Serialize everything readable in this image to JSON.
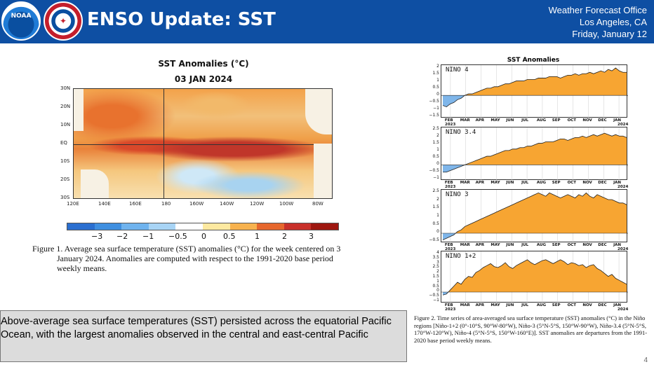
{
  "header": {
    "noaa_logo_text": "NOAA",
    "nws_logo_text": "NATIONAL WEATHER SERVICE",
    "title": "ENSO Update: SST",
    "office": "Weather Forecast Office",
    "location": "Los Angeles, CA",
    "date": "Friday, January 12"
  },
  "map": {
    "title": "SST Anomalies (°C)",
    "date": "03 JAN 2024",
    "lat_labels": [
      "30N",
      "20N",
      "10N",
      "EQ",
      "10S",
      "20S",
      "30S"
    ],
    "lon_labels": [
      "120E",
      "140E",
      "160E",
      "180",
      "160W",
      "140W",
      "120W",
      "100W",
      "80W"
    ],
    "colorbar_labels": [
      "−3",
      "−2",
      "−1",
      "−0.5",
      "0",
      "0.5",
      "1",
      "2",
      "3"
    ],
    "colorbar_colors": [
      "#2b6fd0",
      "#3f8fe0",
      "#6fb3ee",
      "#a8d4f5",
      "#ffffff",
      "#fde9a0",
      "#f7b24e",
      "#e6672d",
      "#c8302a",
      "#9e1710"
    ],
    "caption_line1": "Figure 1. Average sea surface temperature (SST) anomalies (°C) for the week centered on 3",
    "caption_line2": "January 2024.  Anomalies are computed with respect to the 1991-2020 base period",
    "caption_line3": "weekly means."
  },
  "summary": {
    "text": "Above-average sea surface temperatures (SST) persisted across the equatorial Pacific Ocean, with the largest anomalies observed in the central and east-central Pacific"
  },
  "timeseries": {
    "title": "SST Anomalies",
    "months": [
      "FEB",
      "MAR",
      "APR",
      "MAY",
      "JUN",
      "JUL",
      "AUG",
      "SEP",
      "OCT",
      "NOV",
      "DEC",
      "JAN"
    ],
    "year_start": "2023",
    "year_end": "2024",
    "panels": [
      {
        "name": "NINO 4",
        "ymin": -1.5,
        "ymax": 2,
        "ticks": [
          "2",
          "1.5",
          "1",
          "0.5",
          "0",
          "−0.5",
          "−1",
          "−1.5"
        ],
        "values": [
          -0.7,
          -0.8,
          -0.6,
          -0.5,
          -0.3,
          -0.2,
          0.0,
          0.1,
          0.1,
          0.2,
          0.3,
          0.4,
          0.5,
          0.5,
          0.6,
          0.6,
          0.7,
          0.8,
          0.8,
          0.9,
          1.0,
          1.0,
          1.0,
          1.1,
          1.1,
          1.1,
          1.2,
          1.2,
          1.2,
          1.3,
          1.3,
          1.3,
          1.2,
          1.3,
          1.4,
          1.4,
          1.5,
          1.4,
          1.5,
          1.5,
          1.6,
          1.5,
          1.6,
          1.7,
          1.6,
          1.8,
          1.7,
          1.9,
          1.7,
          1.6,
          1.6
        ]
      },
      {
        "name": "NINO 3.4",
        "ymin": -1,
        "ymax": 2.5,
        "ticks": [
          "2.5",
          "2",
          "1.5",
          "1",
          "0.5",
          "0",
          "−0.5",
          "−1"
        ],
        "values": [
          -0.5,
          -0.5,
          -0.4,
          -0.3,
          -0.2,
          -0.1,
          0.0,
          0.1,
          0.2,
          0.3,
          0.4,
          0.5,
          0.6,
          0.6,
          0.7,
          0.8,
          0.9,
          1.0,
          1.0,
          1.1,
          1.1,
          1.2,
          1.2,
          1.3,
          1.3,
          1.4,
          1.5,
          1.5,
          1.6,
          1.6,
          1.6,
          1.7,
          1.8,
          1.8,
          1.7,
          1.8,
          1.9,
          1.9,
          2.0,
          1.9,
          2.0,
          2.1,
          2.0,
          2.1,
          2.2,
          2.1,
          2.0,
          2.1,
          2.0,
          2.0,
          1.9
        ]
      },
      {
        "name": "NINO 3",
        "ymin": -0.5,
        "ymax": 2.5,
        "ticks": [
          "2.5",
          "2",
          "1.5",
          "1",
          "0.5",
          "0",
          "−0.5"
        ],
        "values": [
          -0.4,
          -0.3,
          -0.2,
          -0.1,
          0.1,
          0.2,
          0.4,
          0.5,
          0.6,
          0.7,
          0.8,
          0.9,
          1.0,
          1.1,
          1.2,
          1.3,
          1.4,
          1.5,
          1.6,
          1.7,
          1.8,
          1.9,
          2.0,
          2.1,
          2.2,
          2.3,
          2.4,
          2.3,
          2.2,
          2.4,
          2.3,
          2.2,
          2.1,
          2.2,
          2.3,
          2.2,
          2.1,
          2.3,
          2.2,
          2.4,
          2.2,
          2.1,
          2.3,
          2.2,
          2.1,
          2.0,
          2.0,
          1.9,
          1.8,
          1.8,
          1.7
        ]
      },
      {
        "name": "NINO 1+2",
        "ymin": -1,
        "ymax": 4,
        "ticks": [
          "4",
          "3.5",
          "3",
          "2.5",
          "2",
          "1.5",
          "1",
          "0.5",
          "0",
          "−0.5",
          "−1"
        ],
        "values": [
          -0.3,
          -0.2,
          0.2,
          0.6,
          1.0,
          0.8,
          1.3,
          1.6,
          1.5,
          2.0,
          2.2,
          2.5,
          2.7,
          2.9,
          2.6,
          2.5,
          2.7,
          3.0,
          2.6,
          2.4,
          2.7,
          2.9,
          3.1,
          3.3,
          3.0,
          2.8,
          3.0,
          3.2,
          3.3,
          3.1,
          2.9,
          3.1,
          3.3,
          3.1,
          2.8,
          3.0,
          2.9,
          2.7,
          2.8,
          2.5,
          2.7,
          2.8,
          2.4,
          2.2,
          1.9,
          1.6,
          1.8,
          1.4,
          1.2,
          1.0,
          0.8
        ]
      }
    ],
    "caption": "Figure 2. Time series of area-averaged sea surface temperature (SST) anomalies (°C) in the Niño regions [Niño-1+2 (0°-10°S, 90°W-80°W), Niño-3 (5°N-5°S, 150°W-90°W), Niño-3.4 (5°N-5°S, 170°W-120°W), Niño-4 (5°N-5°S, 150°W-160°E)]. SST anomalies are departures from the 1991-2020 base period weekly means."
  },
  "colors": {
    "header_bg": "#0e4fa3",
    "positive_fill": "#f7a532",
    "negative_fill": "#7fb6ea"
  },
  "page_number": "4"
}
